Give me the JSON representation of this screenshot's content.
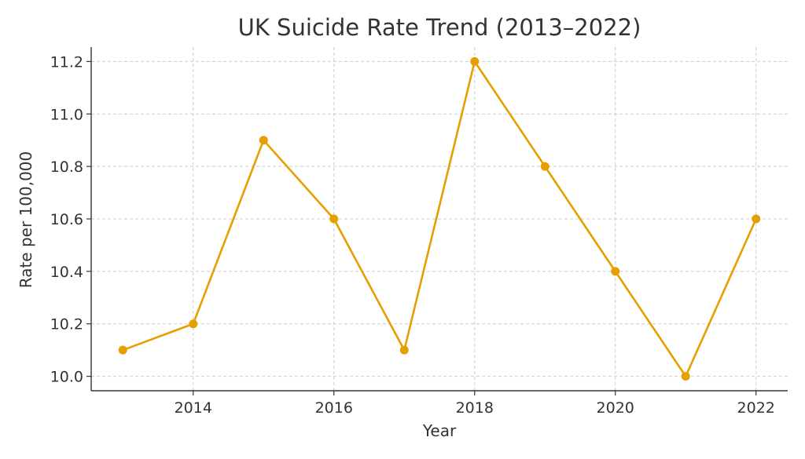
{
  "chart_data": {
    "type": "line",
    "title": "UK Suicide Rate Trend (2013–2022)",
    "xlabel": "Year",
    "ylabel": "Rate per 100,000",
    "x": [
      2013,
      2014,
      2015,
      2016,
      2017,
      2018,
      2019,
      2020,
      2021,
      2022
    ],
    "series": [
      {
        "values": [
          10.1,
          10.2,
          10.9,
          10.6,
          10.1,
          11.2,
          10.8,
          10.4,
          10.0,
          10.6
        ]
      }
    ],
    "xticks": [
      2014,
      2016,
      2018,
      2020,
      2022
    ],
    "xtick_labels": [
      "2014",
      "2016",
      "2018",
      "2020",
      "2022"
    ],
    "yticks": [
      10.0,
      10.2,
      10.4,
      10.6,
      10.8,
      11.0,
      11.2
    ],
    "ytick_labels": [
      "10.0",
      "10.2",
      "10.4",
      "10.6",
      "10.8",
      "11.0",
      "11.2"
    ],
    "xlim": [
      2012.55,
      2022.45
    ],
    "ylim": [
      9.945,
      11.255
    ],
    "grid": true,
    "legend": "none",
    "color": "#E69F00"
  }
}
